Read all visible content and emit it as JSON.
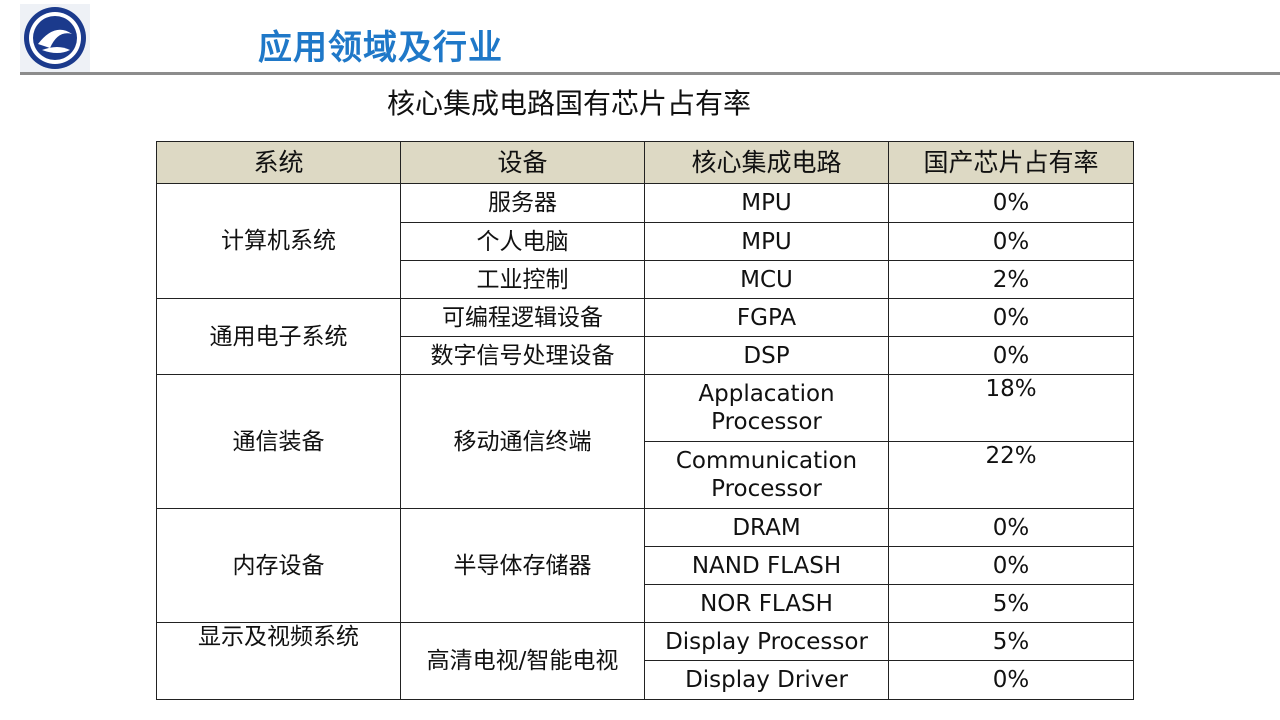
{
  "header": {
    "title": "应用领域及行业"
  },
  "colors": {
    "title_blue": "#1f78c8",
    "header_bg": "#ddd9c4",
    "logo_blue": "#1b3a8c"
  },
  "table": {
    "title": "核心集成电路国有芯片占有率",
    "columns": [
      "系统",
      "设备",
      "核心集成电路",
      "国产芯片占有率"
    ],
    "groups": [
      {
        "system": "计算机系统",
        "devices": [
          {
            "device": "服务器",
            "rows": [
              {
                "chip": "MPU",
                "share": "0%"
              }
            ]
          },
          {
            "device": "个人电脑",
            "rows": [
              {
                "chip": "MPU",
                "share": "0%"
              }
            ]
          },
          {
            "device": "工业控制",
            "rows": [
              {
                "chip": "MCU",
                "share": "2%"
              }
            ]
          }
        ]
      },
      {
        "system": "通用电子系统",
        "devices": [
          {
            "device": "可编程逻辑设备",
            "rows": [
              {
                "chip": "FGPA",
                "share": "0%"
              }
            ]
          },
          {
            "device": "数字信号处理设备",
            "rows": [
              {
                "chip": "DSP",
                "share": "0%"
              }
            ]
          }
        ]
      },
      {
        "system": "通信装备",
        "devices": [
          {
            "device": "移动通信终端",
            "rows": [
              {
                "chip": "Applacation Processor",
                "share": "18%"
              },
              {
                "chip": "Communication Processor",
                "share": "22%"
              }
            ]
          }
        ]
      },
      {
        "system": "内存设备",
        "devices": [
          {
            "device": "半导体存储器",
            "rows": [
              {
                "chip": "DRAM",
                "share": "0%"
              },
              {
                "chip": "NAND FLASH",
                "share": "0%"
              },
              {
                "chip": "NOR FLASH",
                "share": "5%"
              }
            ]
          }
        ]
      },
      {
        "system": "显示及视频系统",
        "devices": [
          {
            "device": "高清电视/智能电视",
            "rows": [
              {
                "chip": "Display Processor",
                "share": "5%"
              },
              {
                "chip": "Display Driver",
                "share": "0%"
              }
            ]
          }
        ]
      }
    ]
  }
}
